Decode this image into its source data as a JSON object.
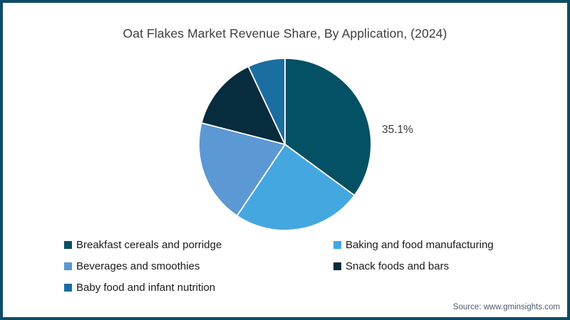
{
  "page": {
    "border_color": "#0d4c66",
    "background_color": "#ffffff"
  },
  "chart_data": {
    "type": "pie",
    "title": "Oat Flakes Market Revenue Share, By Application, (2024)",
    "labels": [
      "Breakfast cereals and porridge",
      "Baking and food manufacturing",
      "Beverages and smoothies",
      "Snack foods and bars",
      "Baby food and infant nutrition"
    ],
    "values": [
      35.1,
      24.3,
      19.6,
      14.0,
      7.0
    ],
    "colors": [
      "#045064",
      "#45a7e0",
      "#5c98d4",
      "#072c3e",
      "#1a6ea0"
    ],
    "start_angle_deg": 0,
    "direction": "clockwise",
    "slice_divider_color": "#ffffff",
    "legend_position": "bottom-left",
    "data_labels_shown": [
      {
        "slice_index": 0,
        "text": "35.1%"
      }
    ]
  },
  "footer": {
    "source": "Source: www.gminsights.com"
  }
}
